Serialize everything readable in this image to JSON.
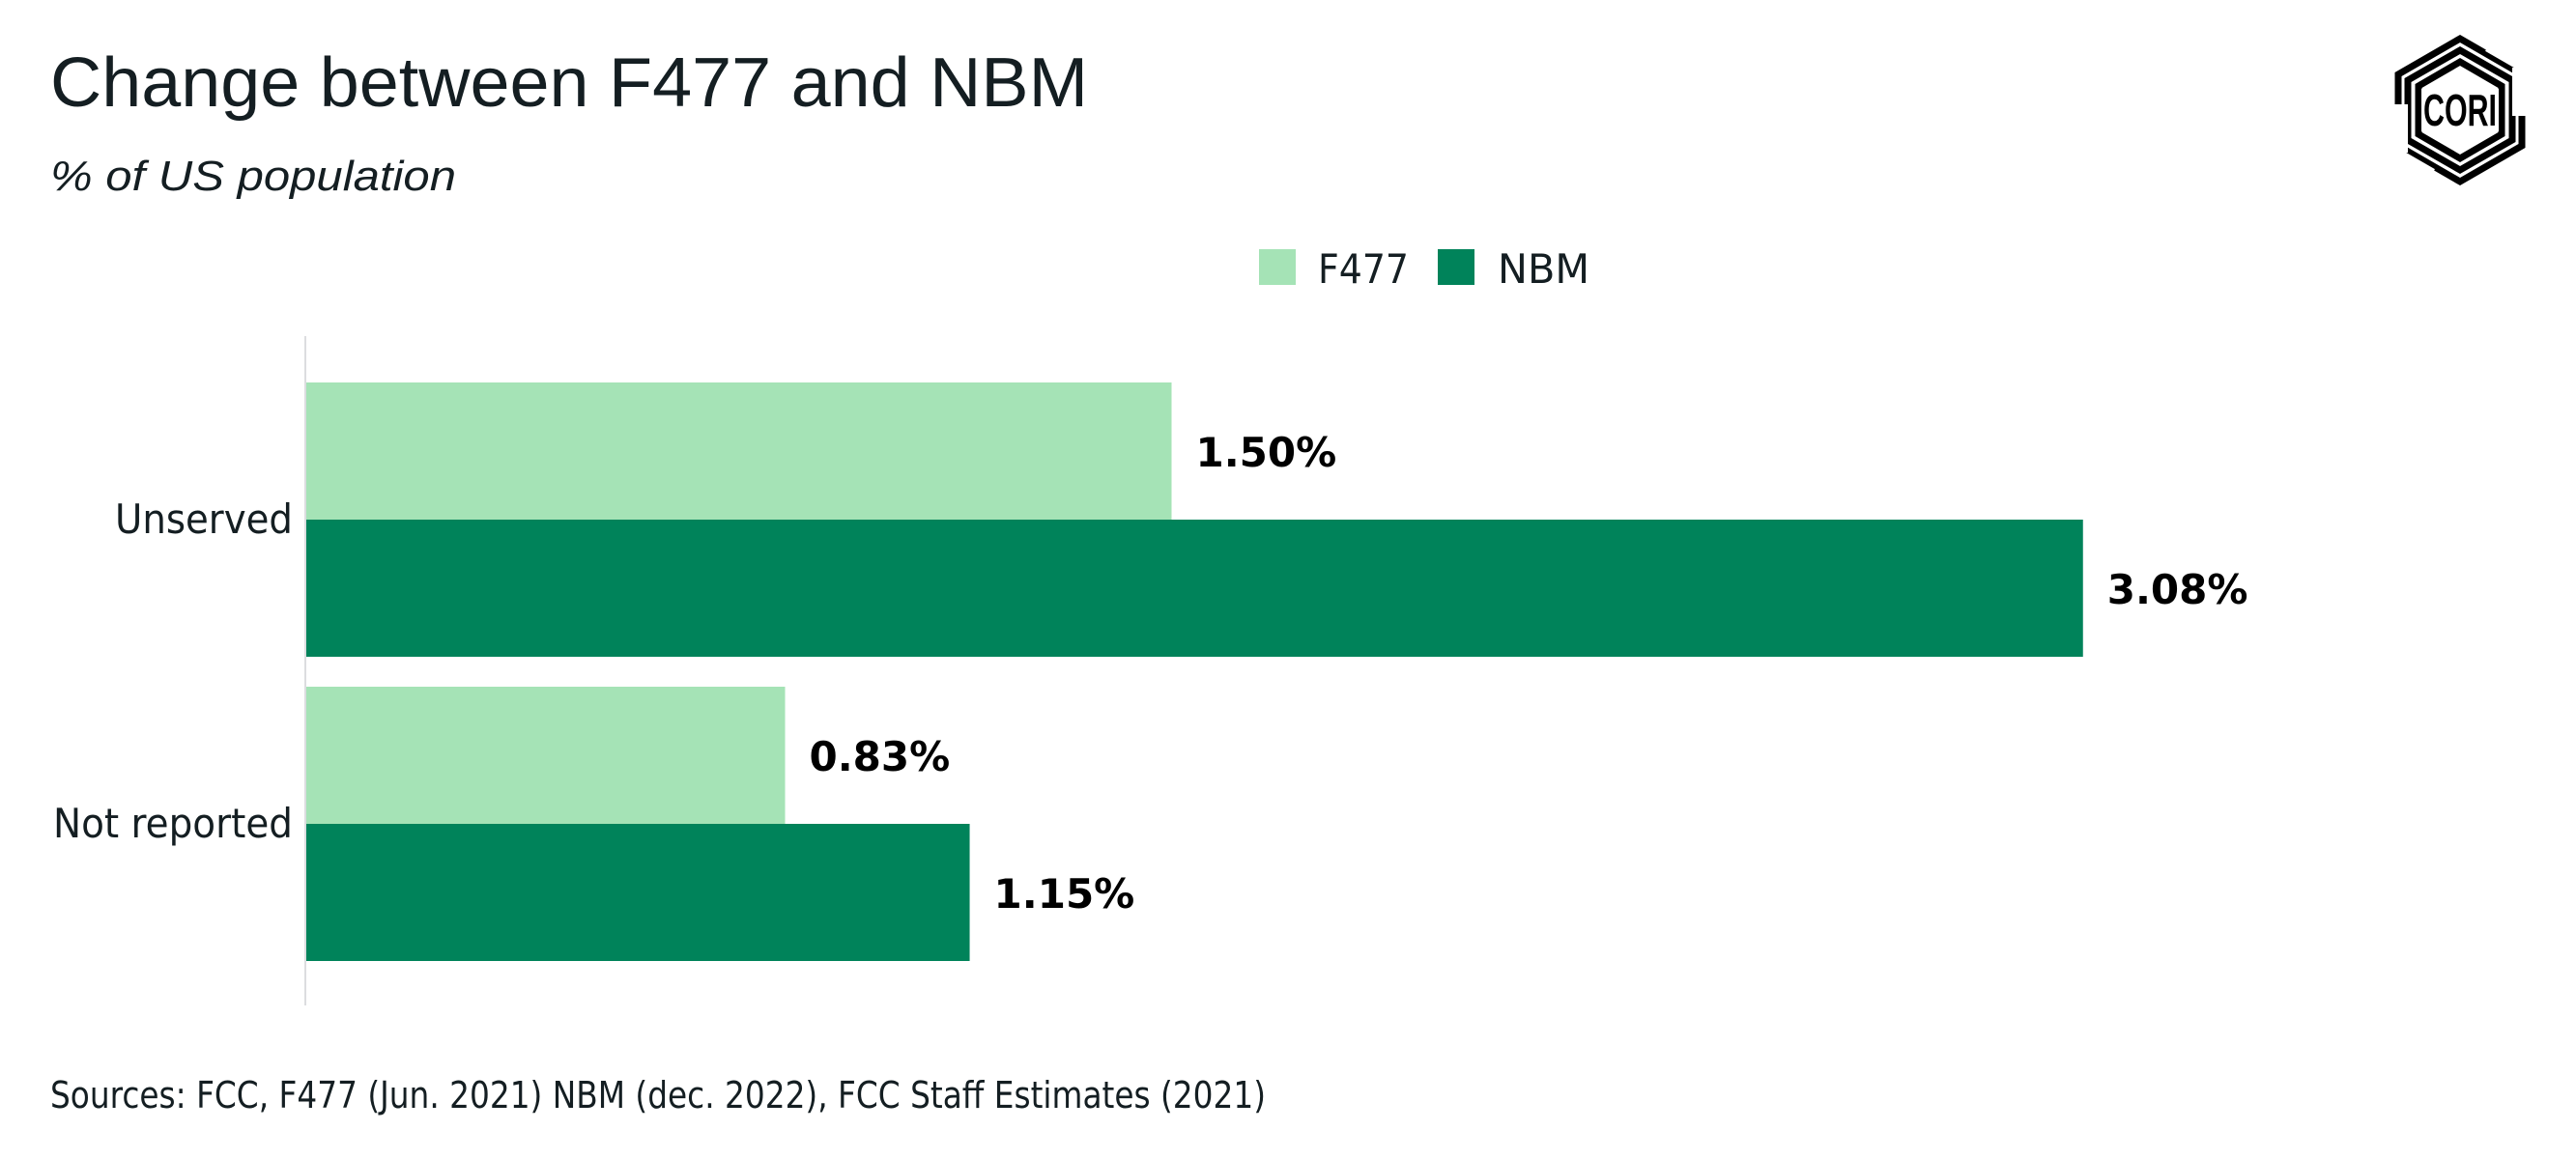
{
  "header": {
    "title": "Change between F477 and NBM",
    "subtitle": "% of US population"
  },
  "logo": {
    "text": "CORI"
  },
  "footer": {
    "source": "Sources: FCC, F477 (Jun. 2021) NBM (dec. 2022), FCC Staff Estimates (2021)"
  },
  "colors": {
    "f477": "#a5e3b6",
    "nbm": "#00835a",
    "axis": "#dcdde0",
    "text": "#141e22"
  },
  "chart_data": {
    "type": "bar",
    "orientation": "horizontal",
    "title": "Change between F477 and NBM",
    "subtitle": "% of US population",
    "xlabel": "",
    "ylabel": "",
    "categories": [
      "Unserved",
      "Not reported"
    ],
    "series": [
      {
        "name": "F477",
        "values": [
          1.5,
          0.83
        ],
        "labels": [
          "1.50%",
          "0.83%"
        ],
        "color": "#a5e3b6"
      },
      {
        "name": "NBM",
        "values": [
          3.08,
          1.15
        ],
        "labels": [
          "3.08%",
          "1.15%"
        ],
        "color": "#00835a"
      }
    ],
    "unit": "%",
    "xlim": [
      0,
      4.0
    ],
    "grid": false,
    "legend": "top-center"
  }
}
